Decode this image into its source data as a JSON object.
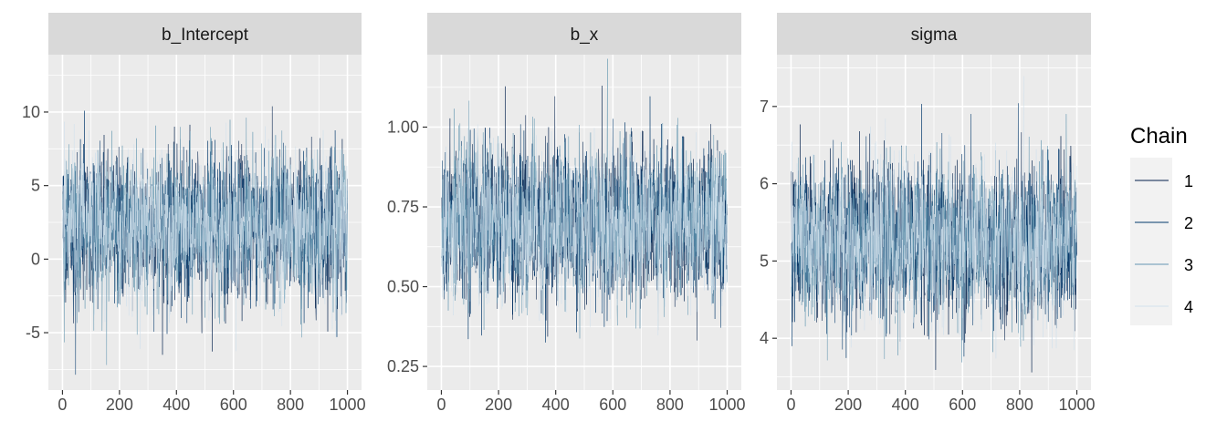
{
  "chart_data": [
    {
      "type": "line",
      "title": "b_Intercept",
      "xlim": [
        0,
        1000
      ],
      "ylim": [
        -8.9,
        13.9
      ],
      "xticks": [
        0,
        200,
        400,
        600,
        800,
        1000
      ],
      "yticks": [
        -5,
        0,
        5,
        10
      ],
      "ytick_labels": [
        "-5",
        "0",
        "5",
        "10"
      ],
      "approx_center": 2.2,
      "approx_sd": 2.5,
      "grid": true
    },
    {
      "type": "line",
      "title": "b_x",
      "xlim": [
        0,
        1000
      ],
      "ylim": [
        0.176,
        1.227
      ],
      "xticks": [
        0,
        200,
        400,
        600,
        800,
        1000
      ],
      "yticks": [
        0.25,
        0.5,
        0.75,
        1.0
      ],
      "ytick_labels": [
        "0.25",
        "0.50",
        "0.75",
        "1.00"
      ],
      "approx_center": 0.7,
      "approx_sd": 0.12,
      "grid": true
    },
    {
      "type": "line",
      "title": "sigma",
      "xlim": [
        0,
        1000
      ],
      "ylim": [
        3.33,
        7.67
      ],
      "xticks": [
        0,
        200,
        400,
        600,
        800,
        1000
      ],
      "yticks": [
        4,
        5,
        6,
        7
      ],
      "ytick_labels": [
        "4",
        "5",
        "6",
        "7"
      ],
      "approx_center": 5.25,
      "approx_sd": 0.5,
      "grid": true
    }
  ],
  "legend": {
    "title": "Chain",
    "placement": "right",
    "items": [
      {
        "label": "1",
        "color": "#011f4b"
      },
      {
        "label": "2",
        "color": "#03396c"
      },
      {
        "label": "3",
        "color": "#6497b1"
      },
      {
        "label": "4",
        "color": "#d1e1ec"
      }
    ]
  },
  "colors": {
    "panel_bg": "#ebebeb",
    "strip_bg": "#d9d9d9",
    "grid": "#ffffff"
  }
}
